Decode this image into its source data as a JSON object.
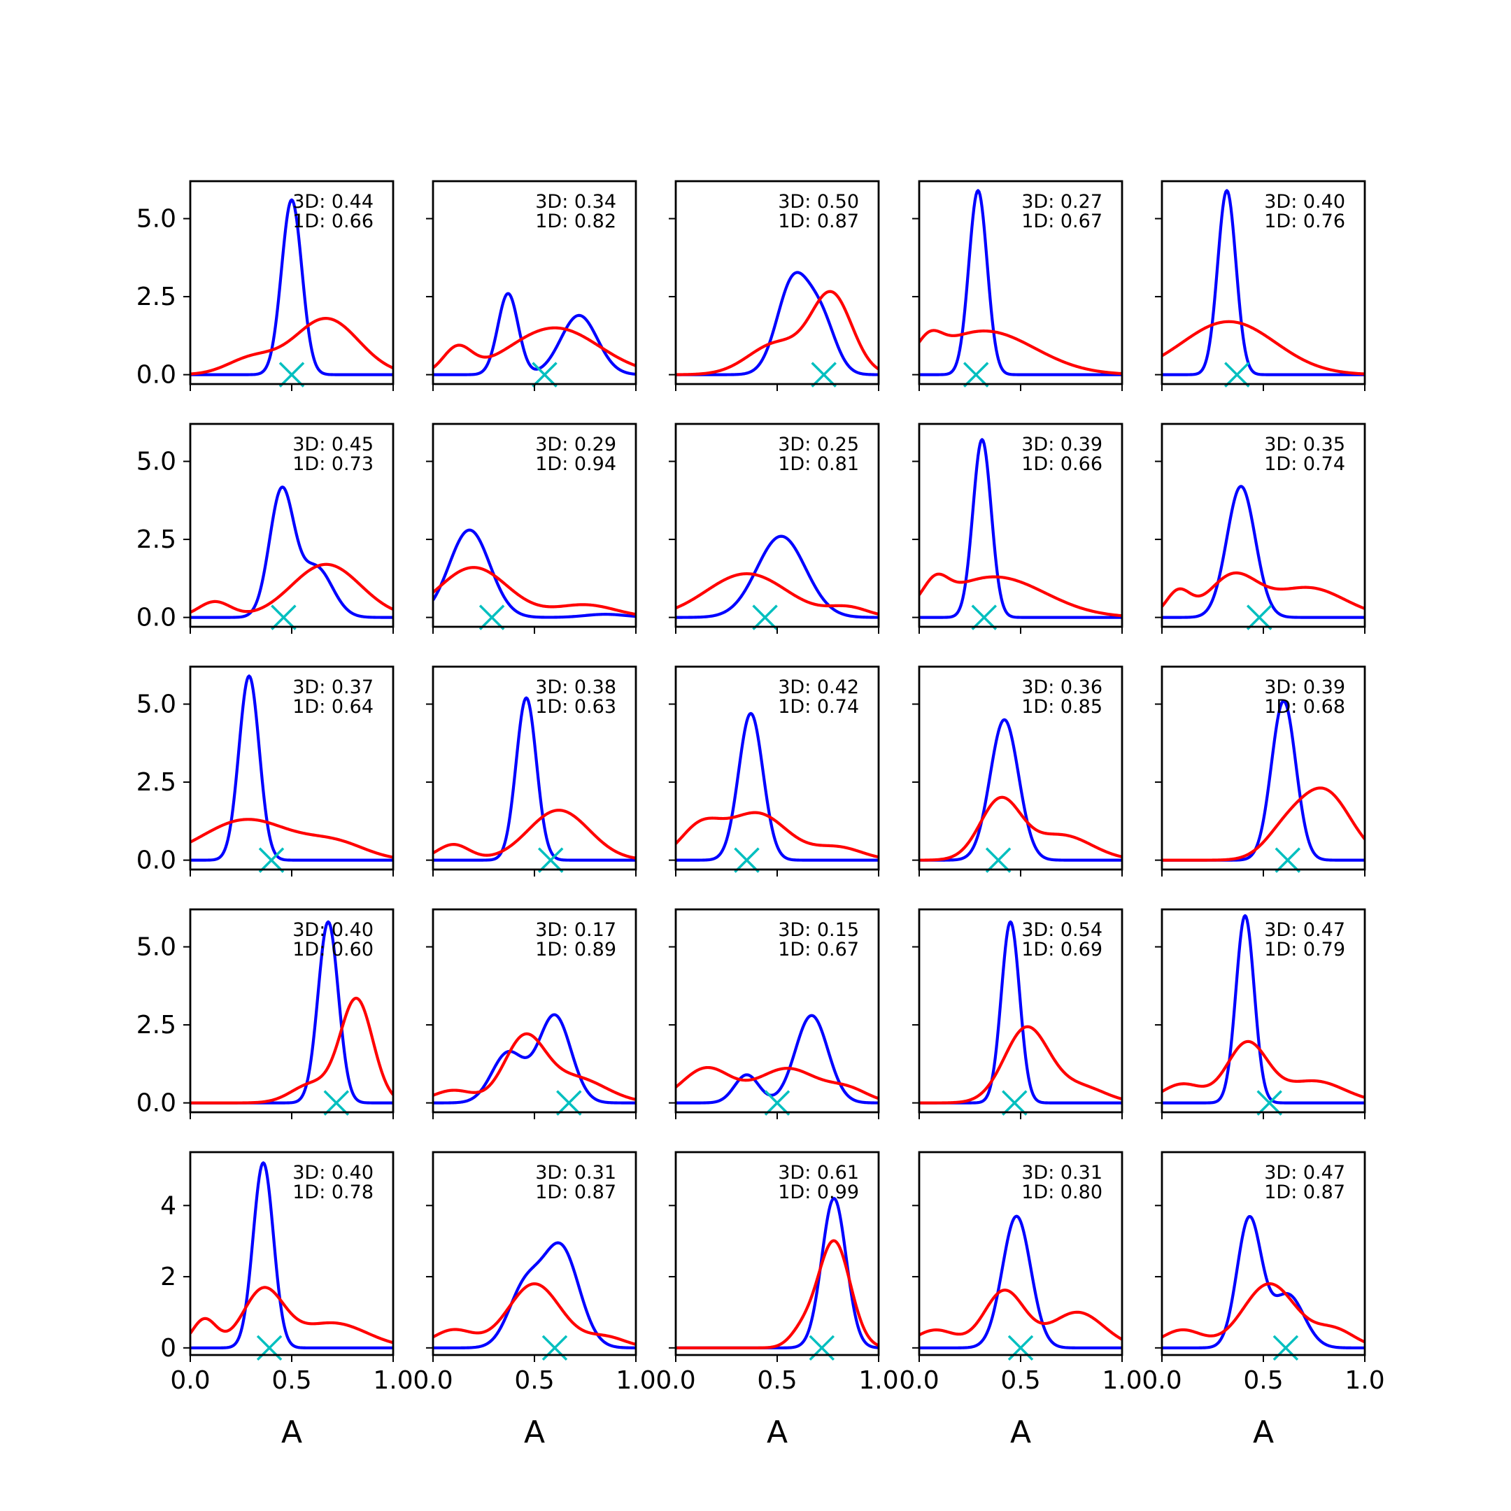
{
  "figure": {
    "rows": 5,
    "cols": 5,
    "colors": {
      "blue": "#0000ff",
      "red": "#ff0000",
      "marker": "#00bfbf"
    },
    "x_tick_labels": [
      "0.0",
      "0.5",
      "1.0"
    ],
    "y_tick_labels_rows_1_to_4": [
      "0.0",
      "2.5",
      "5.0"
    ],
    "y_tick_labels_row_5": [
      "0",
      "2",
      "4"
    ]
  },
  "chart_data": [
    {
      "type": "line",
      "row": 1,
      "col": 1,
      "xlabel": "",
      "xlim": [
        0,
        1
      ],
      "ylim": [
        -0.3,
        6.2
      ],
      "annotation": [
        "3D: 0.44",
        "1D: 0.66"
      ],
      "marker_x": 0.5,
      "series": [
        {
          "color": "blue",
          "peaks": [
            [
              0.5,
              5.6,
              0.05
            ]
          ]
        },
        {
          "color": "red",
          "peaks": [
            [
              0.67,
              1.8,
              0.16
            ],
            [
              0.3,
              0.5,
              0.12
            ]
          ]
        }
      ]
    },
    {
      "type": "line",
      "row": 1,
      "col": 2,
      "xlabel": "",
      "xlim": [
        0,
        1
      ],
      "ylim": [
        -0.3,
        6.2
      ],
      "annotation": [
        "3D: 0.34",
        "1D: 0.82"
      ],
      "marker_x": 0.55,
      "series": [
        {
          "color": "blue",
          "peaks": [
            [
              0.37,
              2.6,
              0.05
            ],
            [
              0.72,
              1.9,
              0.09
            ]
          ]
        },
        {
          "color": "red",
          "peaks": [
            [
              0.6,
              1.5,
              0.22
            ],
            [
              0.12,
              0.8,
              0.07
            ]
          ]
        }
      ]
    },
    {
      "type": "line",
      "row": 1,
      "col": 3,
      "xlabel": "",
      "xlim": [
        0,
        1
      ],
      "ylim": [
        -0.3,
        6.2
      ],
      "annotation": [
        "3D: 0.50",
        "1D: 0.87"
      ],
      "marker_x": 0.73,
      "series": [
        {
          "color": "blue",
          "peaks": [
            [
              0.58,
              3.0,
              0.08
            ],
            [
              0.72,
              1.6,
              0.07
            ]
          ]
        },
        {
          "color": "red",
          "peaks": [
            [
              0.77,
              2.5,
              0.1
            ],
            [
              0.5,
              1.0,
              0.14
            ]
          ]
        }
      ]
    },
    {
      "type": "line",
      "row": 1,
      "col": 4,
      "xlabel": "",
      "xlim": [
        0,
        1
      ],
      "ylim": [
        -0.3,
        6.2
      ],
      "annotation": [
        "3D: 0.27",
        "1D: 0.67"
      ],
      "marker_x": 0.28,
      "series": [
        {
          "color": "blue",
          "peaks": [
            [
              0.29,
              5.9,
              0.045
            ]
          ]
        },
        {
          "color": "red",
          "peaks": [
            [
              0.32,
              1.4,
              0.25
            ],
            [
              0.05,
              0.6,
              0.06
            ]
          ]
        }
      ]
    },
    {
      "type": "line",
      "row": 1,
      "col": 5,
      "xlabel": "",
      "xlim": [
        0,
        1
      ],
      "ylim": [
        -0.3,
        6.2
      ],
      "annotation": [
        "3D: 0.40",
        "1D: 0.76"
      ],
      "marker_x": 0.37,
      "series": [
        {
          "color": "blue",
          "peaks": [
            [
              0.32,
              5.9,
              0.045
            ]
          ]
        },
        {
          "color": "red",
          "peaks": [
            [
              0.33,
              1.7,
              0.23
            ]
          ]
        }
      ]
    },
    {
      "type": "line",
      "row": 2,
      "col": 1,
      "xlabel": "",
      "xlim": [
        0,
        1
      ],
      "ylim": [
        -0.3,
        6.2
      ],
      "annotation": [
        "3D: 0.45",
        "1D: 0.73"
      ],
      "marker_x": 0.46,
      "series": [
        {
          "color": "blue",
          "peaks": [
            [
              0.45,
              4.0,
              0.06
            ],
            [
              0.62,
              1.6,
              0.08
            ]
          ]
        },
        {
          "color": "red",
          "peaks": [
            [
              0.67,
              1.7,
              0.17
            ],
            [
              0.12,
              0.5,
              0.08
            ]
          ]
        }
      ]
    },
    {
      "type": "line",
      "row": 2,
      "col": 2,
      "xlabel": "",
      "xlim": [
        0,
        1
      ],
      "ylim": [
        -0.3,
        6.2
      ],
      "annotation": [
        "3D: 0.29",
        "1D: 0.94"
      ],
      "marker_x": 0.29,
      "series": [
        {
          "color": "blue",
          "peaks": [
            [
              0.18,
              2.8,
              0.1
            ],
            [
              0.85,
              0.1,
              0.1
            ]
          ]
        },
        {
          "color": "red",
          "peaks": [
            [
              0.2,
              1.6,
              0.17
            ],
            [
              0.75,
              0.4,
              0.15
            ]
          ]
        }
      ]
    },
    {
      "type": "line",
      "row": 2,
      "col": 3,
      "xlabel": "",
      "xlim": [
        0,
        1
      ],
      "ylim": [
        -0.3,
        6.2
      ],
      "annotation": [
        "3D: 0.25",
        "1D: 0.81"
      ],
      "marker_x": 0.44,
      "series": [
        {
          "color": "blue",
          "peaks": [
            [
              0.52,
              2.6,
              0.12
            ]
          ]
        },
        {
          "color": "red",
          "peaks": [
            [
              0.35,
              1.4,
              0.2
            ],
            [
              0.85,
              0.3,
              0.1
            ]
          ]
        }
      ]
    },
    {
      "type": "line",
      "row": 2,
      "col": 4,
      "xlabel": "",
      "xlim": [
        0,
        1
      ],
      "ylim": [
        -0.3,
        6.2
      ],
      "annotation": [
        "3D: 0.39",
        "1D: 0.66"
      ],
      "marker_x": 0.32,
      "series": [
        {
          "color": "blue",
          "peaks": [
            [
              0.31,
              5.7,
              0.045
            ]
          ]
        },
        {
          "color": "red",
          "peaks": [
            [
              0.37,
              1.3,
              0.25
            ],
            [
              0.08,
              0.7,
              0.06
            ]
          ]
        }
      ]
    },
    {
      "type": "line",
      "row": 2,
      "col": 5,
      "xlabel": "",
      "xlim": [
        0,
        1
      ],
      "ylim": [
        -0.3,
        6.2
      ],
      "annotation": [
        "3D: 0.35",
        "1D: 0.74"
      ],
      "marker_x": 0.48,
      "series": [
        {
          "color": "blue",
          "peaks": [
            [
              0.39,
              4.2,
              0.07
            ]
          ]
        },
        {
          "color": "red",
          "peaks": [
            [
              0.35,
              1.3,
              0.12
            ],
            [
              0.72,
              0.95,
              0.18
            ],
            [
              0.08,
              0.8,
              0.06
            ]
          ]
        }
      ]
    },
    {
      "type": "line",
      "row": 3,
      "col": 1,
      "xlabel": "",
      "xlim": [
        0,
        1
      ],
      "ylim": [
        -0.3,
        6.2
      ],
      "annotation": [
        "3D: 0.37",
        "1D: 0.64"
      ],
      "marker_x": 0.4,
      "series": [
        {
          "color": "blue",
          "peaks": [
            [
              0.29,
              5.9,
              0.05
            ]
          ]
        },
        {
          "color": "red",
          "peaks": [
            [
              0.28,
              1.3,
              0.22
            ],
            [
              0.72,
              0.5,
              0.15
            ]
          ]
        }
      ]
    },
    {
      "type": "line",
      "row": 3,
      "col": 2,
      "xlabel": "",
      "xlim": [
        0,
        1
      ],
      "ylim": [
        -0.3,
        6.2
      ],
      "annotation": [
        "3D: 0.38",
        "1D: 0.63"
      ],
      "marker_x": 0.58,
      "series": [
        {
          "color": "blue",
          "peaks": [
            [
              0.46,
              5.2,
              0.05
            ]
          ]
        },
        {
          "color": "red",
          "peaks": [
            [
              0.62,
              1.6,
              0.15
            ],
            [
              0.1,
              0.5,
              0.08
            ]
          ]
        }
      ]
    },
    {
      "type": "line",
      "row": 3,
      "col": 3,
      "xlabel": "",
      "xlim": [
        0,
        1
      ],
      "ylim": [
        -0.3,
        6.2
      ],
      "annotation": [
        "3D: 0.42",
        "1D: 0.74"
      ],
      "marker_x": 0.35,
      "series": [
        {
          "color": "blue",
          "peaks": [
            [
              0.37,
              4.7,
              0.06
            ]
          ]
        },
        {
          "color": "red",
          "peaks": [
            [
              0.4,
              1.5,
              0.15
            ],
            [
              0.12,
              1.0,
              0.1
            ],
            [
              0.8,
              0.4,
              0.12
            ]
          ]
        }
      ]
    },
    {
      "type": "line",
      "row": 3,
      "col": 4,
      "xlabel": "",
      "xlim": [
        0,
        1
      ],
      "ylim": [
        -0.3,
        6.2
      ],
      "annotation": [
        "3D: 0.36",
        "1D: 0.85"
      ],
      "marker_x": 0.39,
      "series": [
        {
          "color": "blue",
          "peaks": [
            [
              0.42,
              4.5,
              0.07
            ]
          ]
        },
        {
          "color": "red",
          "peaks": [
            [
              0.4,
              1.9,
              0.1
            ],
            [
              0.7,
              0.8,
              0.15
            ]
          ]
        }
      ]
    },
    {
      "type": "line",
      "row": 3,
      "col": 5,
      "xlabel": "",
      "xlim": [
        0,
        1
      ],
      "ylim": [
        -0.3,
        6.2
      ],
      "annotation": [
        "3D: 0.39",
        "1D: 0.68"
      ],
      "marker_x": 0.62,
      "series": [
        {
          "color": "blue",
          "peaks": [
            [
              0.6,
              5.1,
              0.06
            ]
          ]
        },
        {
          "color": "red",
          "peaks": [
            [
              0.8,
              2.2,
              0.13
            ],
            [
              0.6,
              0.7,
              0.1
            ]
          ]
        }
      ]
    },
    {
      "type": "line",
      "row": 4,
      "col": 1,
      "xlabel": "",
      "xlim": [
        0,
        1
      ],
      "ylim": [
        -0.3,
        6.2
      ],
      "annotation": [
        "3D: 0.40",
        "1D: 0.60"
      ],
      "marker_x": 0.72,
      "series": [
        {
          "color": "blue",
          "peaks": [
            [
              0.68,
              5.8,
              0.05
            ]
          ]
        },
        {
          "color": "red",
          "peaks": [
            [
              0.82,
              3.3,
              0.08
            ],
            [
              0.6,
              0.6,
              0.1
            ]
          ]
        }
      ]
    },
    {
      "type": "line",
      "row": 4,
      "col": 2,
      "xlabel": "",
      "xlim": [
        0,
        1
      ],
      "ylim": [
        -0.3,
        6.2
      ],
      "annotation": [
        "3D: 0.17",
        "1D: 0.89"
      ],
      "marker_x": 0.67,
      "series": [
        {
          "color": "blue",
          "peaks": [
            [
              0.6,
              2.8,
              0.08
            ],
            [
              0.37,
              1.6,
              0.08
            ]
          ]
        },
        {
          "color": "red",
          "peaks": [
            [
              0.45,
              2.0,
              0.1
            ],
            [
              0.7,
              0.8,
              0.15
            ],
            [
              0.1,
              0.4,
              0.1
            ]
          ]
        }
      ]
    },
    {
      "type": "line",
      "row": 4,
      "col": 3,
      "xlabel": "",
      "xlim": [
        0,
        1
      ],
      "ylim": [
        -0.3,
        6.2
      ],
      "annotation": [
        "3D: 0.15",
        "1D: 0.67"
      ],
      "marker_x": 0.5,
      "series": [
        {
          "color": "blue",
          "peaks": [
            [
              0.67,
              2.8,
              0.08
            ],
            [
              0.35,
              0.9,
              0.06
            ]
          ]
        },
        {
          "color": "red",
          "peaks": [
            [
              0.15,
              1.1,
              0.12
            ],
            [
              0.55,
              1.1,
              0.15
            ],
            [
              0.85,
              0.4,
              0.1
            ]
          ]
        }
      ]
    },
    {
      "type": "line",
      "row": 4,
      "col": 4,
      "xlabel": "",
      "xlim": [
        0,
        1
      ],
      "ylim": [
        -0.3,
        6.2
      ],
      "annotation": [
        "3D: 0.54",
        "1D: 0.69"
      ],
      "marker_x": 0.47,
      "series": [
        {
          "color": "blue",
          "peaks": [
            [
              0.45,
              5.8,
              0.045
            ]
          ]
        },
        {
          "color": "red",
          "peaks": [
            [
              0.53,
              2.4,
              0.11
            ],
            [
              0.8,
              0.5,
              0.12
            ]
          ]
        }
      ]
    },
    {
      "type": "line",
      "row": 4,
      "col": 5,
      "xlabel": "",
      "xlim": [
        0,
        1
      ],
      "ylim": [
        -0.3,
        6.2
      ],
      "annotation": [
        "3D: 0.47",
        "1D: 0.79"
      ],
      "marker_x": 0.53,
      "series": [
        {
          "color": "blue",
          "peaks": [
            [
              0.41,
              6.0,
              0.045
            ]
          ]
        },
        {
          "color": "red",
          "peaks": [
            [
              0.42,
              1.9,
              0.1
            ],
            [
              0.75,
              0.7,
              0.15
            ],
            [
              0.1,
              0.6,
              0.1
            ]
          ]
        }
      ]
    },
    {
      "type": "line",
      "row": 5,
      "col": 1,
      "xlabel": "A",
      "xlim": [
        0,
        1
      ],
      "ylim": [
        -0.2,
        5.5
      ],
      "annotation": [
        "3D: 0.40",
        "1D: 0.78"
      ],
      "marker_x": 0.39,
      "series": [
        {
          "color": "blue",
          "peaks": [
            [
              0.36,
              5.2,
              0.05
            ]
          ]
        },
        {
          "color": "red",
          "peaks": [
            [
              0.36,
              1.6,
              0.1
            ],
            [
              0.7,
              0.7,
              0.17
            ],
            [
              0.07,
              0.8,
              0.06
            ]
          ]
        }
      ]
    },
    {
      "type": "line",
      "row": 5,
      "col": 2,
      "xlabel": "A",
      "xlim": [
        0,
        1
      ],
      "ylim": [
        -0.2,
        5.5
      ],
      "annotation": [
        "3D: 0.31",
        "1D: 0.87"
      ],
      "marker_x": 0.6,
      "series": [
        {
          "color": "blue",
          "peaks": [
            [
              0.63,
              2.8,
              0.09
            ],
            [
              0.45,
              1.6,
              0.08
            ]
          ]
        },
        {
          "color": "red",
          "peaks": [
            [
              0.5,
              1.8,
              0.13
            ],
            [
              0.1,
              0.5,
              0.1
            ],
            [
              0.85,
              0.3,
              0.1
            ]
          ]
        }
      ]
    },
    {
      "type": "line",
      "row": 5,
      "col": 3,
      "xlabel": "A",
      "xlim": [
        0,
        1
      ],
      "ylim": [
        -0.2,
        5.5
      ],
      "annotation": [
        "3D: 0.61",
        "1D: 0.99"
      ],
      "marker_x": 0.72,
      "series": [
        {
          "color": "blue",
          "peaks": [
            [
              0.78,
              4.2,
              0.06
            ]
          ]
        },
        {
          "color": "red",
          "peaks": [
            [
              0.78,
              3.0,
              0.08
            ],
            [
              0.62,
              0.4,
              0.06
            ]
          ]
        }
      ]
    },
    {
      "type": "line",
      "row": 5,
      "col": 4,
      "xlabel": "A",
      "xlim": [
        0,
        1
      ],
      "ylim": [
        -0.2,
        5.5
      ],
      "annotation": [
        "3D: 0.31",
        "1D: 0.80"
      ],
      "marker_x": 0.5,
      "series": [
        {
          "color": "blue",
          "peaks": [
            [
              0.48,
              3.7,
              0.07
            ]
          ]
        },
        {
          "color": "red",
          "peaks": [
            [
              0.42,
              1.6,
              0.1
            ],
            [
              0.78,
              1.0,
              0.13
            ],
            [
              0.08,
              0.5,
              0.1
            ]
          ]
        }
      ]
    },
    {
      "type": "line",
      "row": 5,
      "col": 5,
      "xlabel": "A",
      "xlim": [
        0,
        1
      ],
      "ylim": [
        -0.2,
        5.5
      ],
      "annotation": [
        "3D: 0.47",
        "1D: 0.87"
      ],
      "marker_x": 0.61,
      "series": [
        {
          "color": "blue",
          "peaks": [
            [
              0.43,
              3.6,
              0.06
            ],
            [
              0.62,
              1.5,
              0.08
            ]
          ]
        },
        {
          "color": "red",
          "peaks": [
            [
              0.53,
              1.8,
              0.13
            ],
            [
              0.85,
              0.5,
              0.1
            ],
            [
              0.1,
              0.5,
              0.1
            ]
          ]
        }
      ]
    }
  ]
}
